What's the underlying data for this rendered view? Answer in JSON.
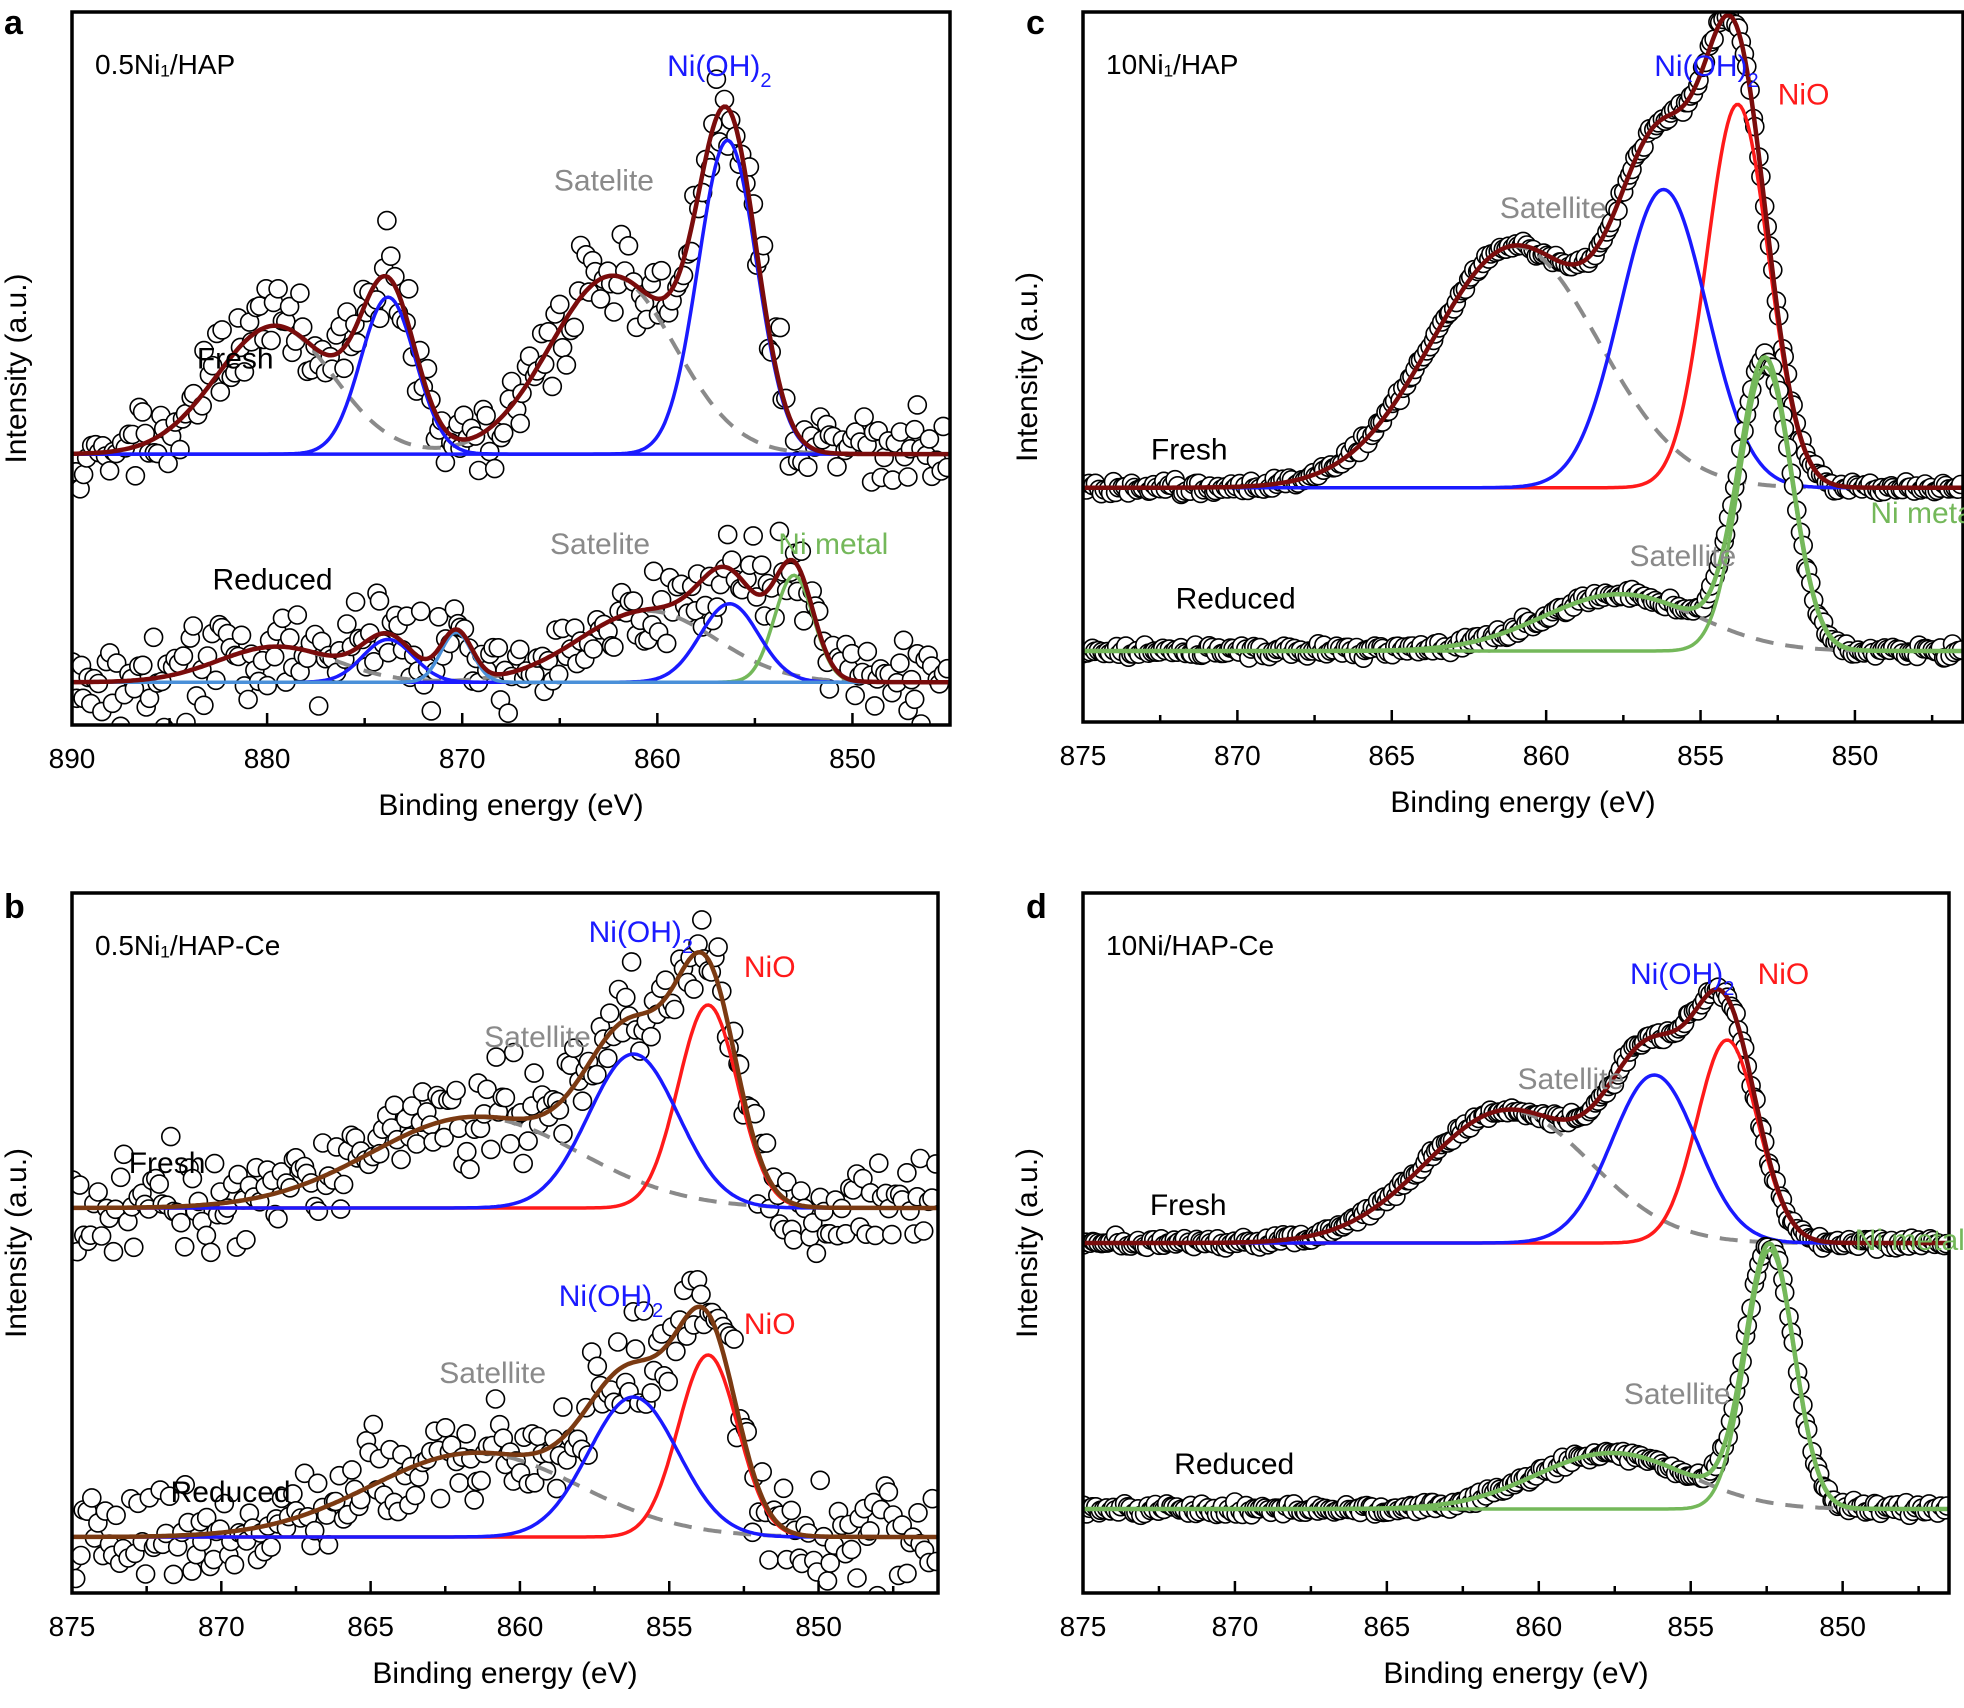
{
  "colors": {
    "frame": "#000000",
    "envelope_dark": "#7a0c0c",
    "envelope_brown": "#7b3a12",
    "niOH2": "#1a1aff",
    "niO": "#ff1a1a",
    "ni_metal": "#74b85a",
    "satellite": "#8a8a8a",
    "light_blue": "#4a90d9",
    "marker_fill": "#ffffff",
    "marker_edge": "#000000"
  },
  "chart_data": [
    {
      "id": "a",
      "panel_letter": "a",
      "type": "scatter",
      "title": "0.5Ni₁/HAP",
      "xlabel": "Binding energy (eV)",
      "ylabel": "Intensity (a.u.)",
      "xlim": [
        890,
        845
      ],
      "ylim": [
        0,
        1
      ],
      "xticks": [
        890,
        880,
        870,
        860,
        850
      ],
      "grid": false,
      "traces": [
        {
          "name": "Fresh",
          "baseline": 0.38,
          "noise": 0.045,
          "peaks": [
            {
              "label": "Ni(OH)₂",
              "center": 856.4,
              "height": 0.44,
              "width": 1.5,
              "kind": "niOH2"
            },
            {
              "label": "Ni(OH)₂",
              "center": 873.8,
              "height": 0.22,
              "width": 1.4,
              "kind": "niOH2"
            },
            {
              "label": "Satelite",
              "center": 862.3,
              "height": 0.25,
              "width": 3.2,
              "kind": "satellite"
            },
            {
              "label": "Satelite",
              "center": 879.6,
              "height": 0.18,
              "width": 3.0,
              "kind": "satellite"
            }
          ],
          "envelope": "envelope_dark"
        },
        {
          "name": "Reduced",
          "baseline": 0.06,
          "noise": 0.045,
          "peaks": [
            {
              "label": "Ni metal",
              "center": 853.0,
              "height": 0.15,
              "width": 1.0,
              "kind": "ni_metal"
            },
            {
              "label": "Ni(OH)₂",
              "center": 856.3,
              "height": 0.11,
              "width": 1.5,
              "kind": "niOH2"
            },
            {
              "label": "Ni(OH)₂",
              "center": 873.8,
              "height": 0.06,
              "width": 1.3,
              "kind": "niOH2"
            },
            {
              "label": "",
              "center": 870.3,
              "height": 0.07,
              "width": 0.8,
              "kind": "light_blue"
            },
            {
              "label": "Satelite",
              "center": 860.5,
              "height": 0.1,
              "width": 3.5,
              "kind": "satellite"
            },
            {
              "label": "Satelite",
              "center": 879.5,
              "height": 0.05,
              "width": 3.0,
              "kind": "satellite"
            }
          ],
          "envelope": "envelope_dark"
        }
      ],
      "annotations": [
        {
          "text": "Fresh",
          "x": 883.6,
          "y": 0.5
        },
        {
          "text": "Reduced",
          "x": 882.8,
          "y": 0.19
        },
        {
          "text": "Ni(OH)",
          "sub": "2",
          "x": 859.5,
          "y": 0.91,
          "color": "niOH2"
        },
        {
          "text": "Satelite",
          "x": 865.3,
          "y": 0.75,
          "color": "satellite"
        },
        {
          "text": "Satelite",
          "x": 865.5,
          "y": 0.24,
          "color": "satellite"
        },
        {
          "text": "Ni metal",
          "x": 853.8,
          "y": 0.24,
          "color": "ni_metal"
        }
      ]
    },
    {
      "id": "b",
      "panel_letter": "b",
      "type": "scatter",
      "title": "0.5Ni₁/HAP-Ce",
      "xlabel": "Binding energy (eV)",
      "ylabel": "Intensity (a.u.)",
      "xlim": [
        875,
        846
      ],
      "ylim": [
        0,
        1
      ],
      "xticks": [
        875,
        870,
        865,
        860,
        855,
        850
      ],
      "grid": false,
      "traces": [
        {
          "name": "Fresh",
          "baseline": 0.55,
          "noise": 0.05,
          "peaks": [
            {
              "label": "NiO",
              "center": 853.7,
              "height": 0.29,
              "width": 1.0,
              "kind": "niO"
            },
            {
              "label": "Ni(OH)₂",
              "center": 856.2,
              "height": 0.22,
              "width": 1.5,
              "kind": "niOH2"
            },
            {
              "label": "Satellite",
              "center": 861.5,
              "height": 0.13,
              "width": 3.5,
              "kind": "satellite"
            }
          ],
          "envelope": "envelope_brown"
        },
        {
          "name": "Reduced",
          "baseline": 0.08,
          "noise": 0.05,
          "peaks": [
            {
              "label": "NiO",
              "center": 853.7,
              "height": 0.26,
              "width": 1.0,
              "kind": "niO"
            },
            {
              "label": "Ni(OH)₂",
              "center": 856.2,
              "height": 0.2,
              "width": 1.5,
              "kind": "niOH2"
            },
            {
              "label": "Satellite",
              "center": 861.5,
              "height": 0.12,
              "width": 3.5,
              "kind": "satellite"
            }
          ],
          "envelope": "envelope_brown"
        }
      ],
      "annotations": [
        {
          "text": "Fresh",
          "x": 873.1,
          "y": 0.6
        },
        {
          "text": "Reduced",
          "x": 871.7,
          "y": 0.13
        },
        {
          "text": "Ni(OH)",
          "sub": "2",
          "x": 857.7,
          "y": 0.93,
          "color": "niOH2"
        },
        {
          "text": "NiO",
          "x": 852.5,
          "y": 0.88,
          "color": "niO"
        },
        {
          "text": "Satellite",
          "x": 861.2,
          "y": 0.78,
          "color": "satellite"
        },
        {
          "text": "Ni(OH)",
          "sub": "2",
          "x": 858.7,
          "y": 0.41,
          "color": "niOH2"
        },
        {
          "text": "NiO",
          "x": 852.5,
          "y": 0.37,
          "color": "niO"
        },
        {
          "text": "Satellite",
          "x": 862.7,
          "y": 0.3,
          "color": "satellite"
        }
      ]
    },
    {
      "id": "c",
      "panel_letter": "c",
      "type": "scatter",
      "title": "10Ni₁/HAP",
      "xlabel": "Binding energy (eV)",
      "ylabel": "Intensity (a.u.)",
      "xlim": [
        875,
        846.5
      ],
      "ylim": [
        0,
        1
      ],
      "xticks": [
        875,
        870,
        865,
        860,
        855,
        850
      ],
      "grid": false,
      "traces": [
        {
          "name": "Fresh",
          "baseline": 0.33,
          "noise": 0.006,
          "peaks": [
            {
              "label": "NiO",
              "center": 853.8,
              "height": 0.54,
              "width": 1.0,
              "kind": "niO"
            },
            {
              "label": "Ni(OH)₂",
              "center": 856.2,
              "height": 0.42,
              "width": 1.4,
              "kind": "niOH2"
            },
            {
              "label": "Satellite",
              "center": 861.0,
              "height": 0.34,
              "width": 2.7,
              "kind": "satellite"
            }
          ],
          "envelope": "envelope_dark"
        },
        {
          "name": "Reduced",
          "baseline": 0.1,
          "noise": 0.006,
          "peaks": [
            {
              "label": "Ni metal",
              "center": 852.9,
              "height": 0.4,
              "width": 0.85,
              "kind": "ni_metal"
            },
            {
              "label": "Satellite",
              "center": 857.6,
              "height": 0.08,
              "width": 2.5,
              "kind": "satellite"
            }
          ],
          "envelope": "ni_metal"
        }
      ],
      "annotations": [
        {
          "text": "Fresh",
          "x": 872.8,
          "y": 0.37
        },
        {
          "text": "Reduced",
          "x": 872.0,
          "y": 0.16
        },
        {
          "text": "Ni(OH)",
          "sub": "2",
          "x": 856.5,
          "y": 0.91,
          "color": "niOH2"
        },
        {
          "text": "NiO",
          "x": 852.5,
          "y": 0.87,
          "color": "niO"
        },
        {
          "text": "Satellite",
          "x": 861.5,
          "y": 0.71,
          "color": "satellite"
        },
        {
          "text": "Satellite",
          "x": 857.3,
          "y": 0.22,
          "color": "satellite"
        },
        {
          "text": "Ni metal",
          "x": 849.5,
          "y": 0.28,
          "color": "ni_metal"
        }
      ]
    },
    {
      "id": "d",
      "panel_letter": "d",
      "type": "scatter",
      "title": "10Ni/HAP-Ce",
      "xlabel": "Binding energy (eV)",
      "ylabel": "Intensity (a.u.)",
      "xlim": [
        875,
        846.5
      ],
      "ylim": [
        0,
        1
      ],
      "xticks": [
        875,
        870,
        865,
        860,
        855,
        850
      ],
      "grid": false,
      "traces": [
        {
          "name": "Fresh",
          "baseline": 0.5,
          "noise": 0.006,
          "peaks": [
            {
              "label": "NiO",
              "center": 853.8,
              "height": 0.29,
              "width": 1.0,
              "kind": "niO"
            },
            {
              "label": "Ni(OH)₂",
              "center": 856.2,
              "height": 0.24,
              "width": 1.4,
              "kind": "niOH2"
            },
            {
              "label": "Satellite",
              "center": 861.0,
              "height": 0.19,
              "width": 2.7,
              "kind": "satellite"
            }
          ],
          "envelope": "envelope_dark"
        },
        {
          "name": "Reduced",
          "baseline": 0.12,
          "noise": 0.006,
          "peaks": [
            {
              "label": "Ni metal",
              "center": 852.4,
              "height": 0.37,
              "width": 0.8,
              "kind": "ni_metal"
            },
            {
              "label": "Satellite",
              "center": 857.6,
              "height": 0.08,
              "width": 2.5,
              "kind": "satellite"
            }
          ],
          "envelope": "ni_metal"
        }
      ],
      "annotations": [
        {
          "text": "Fresh",
          "x": 872.8,
          "y": 0.54
        },
        {
          "text": "Reduced",
          "x": 872.0,
          "y": 0.17
        },
        {
          "text": "Ni(OH)",
          "sub": "2",
          "x": 857.0,
          "y": 0.87,
          "color": "niOH2"
        },
        {
          "text": "NiO",
          "x": 852.8,
          "y": 0.87,
          "color": "niO"
        },
        {
          "text": "Satellite",
          "x": 860.7,
          "y": 0.72,
          "color": "satellite"
        },
        {
          "text": "Satellite",
          "x": 857.2,
          "y": 0.27,
          "color": "satellite"
        },
        {
          "text": "Ni metal",
          "x": 849.6,
          "y": 0.49,
          "color": "ni_metal"
        }
      ]
    }
  ]
}
